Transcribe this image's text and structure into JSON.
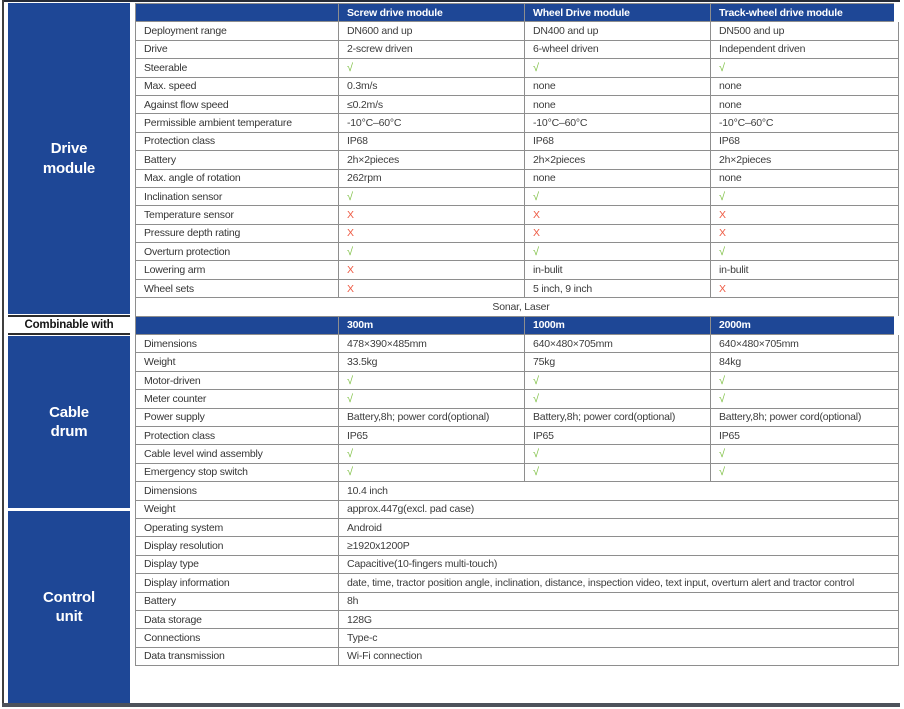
{
  "colors": {
    "header_blue": "#1e4796",
    "check_green": "#7ec043",
    "cross_red": "#ee5a43"
  },
  "drive_module": {
    "title_lines": {
      "0": "Drive",
      "1": "module"
    },
    "header": {
      "0": "Screw drive module",
      "1": "Wheel Drive module",
      "2": "Track-wheel drive module"
    },
    "rows": [
      [
        "Deployment range",
        "DN600 and up",
        "DN400 and up",
        "DN500 and up"
      ],
      [
        "Drive",
        "2-screw driven",
        "6-wheel driven",
        "Independent driven"
      ],
      [
        "Steerable",
        "√",
        "√",
        "√"
      ],
      [
        "Max. speed",
        "0.3m/s",
        "none",
        "none"
      ],
      [
        "Against flow speed",
        "≤0.2m/s",
        "none",
        "none"
      ],
      [
        "Permissible ambient temperature",
        "-10°C–60°C",
        "-10°C–60°C",
        "-10°C–60°C"
      ],
      [
        "Protection class",
        "IP68",
        "IP68",
        "IP68"
      ],
      [
        "Battery",
        "2h×2pieces",
        "2h×2pieces",
        "2h×2pieces"
      ],
      [
        "Max. angle of rotation",
        "262rpm",
        "none",
        "none"
      ],
      [
        "Inclination sensor",
        "√",
        "√",
        "√"
      ],
      [
        "Temperature sensor",
        "X",
        "X",
        "X"
      ],
      [
        "Pressure depth rating",
        "X",
        "X",
        "X"
      ],
      [
        "Overturn protection",
        "√",
        "√",
        "√"
      ],
      [
        "Lowering arm",
        "X",
        "in-bulit",
        "in-bulit"
      ],
      [
        "Wheel sets",
        "X",
        "5 inch, 9 inch",
        "X"
      ]
    ]
  },
  "combinable": {
    "label": "Combinable with",
    "value": "Sonar, Laser"
  },
  "cable_drum": {
    "title_lines": {
      "0": "Cable",
      "1": "drum"
    },
    "header": {
      "0": "300m",
      "1": "1000m",
      "2": "2000m"
    },
    "rows": [
      [
        "Dimensions",
        "478×390×485mm",
        "640×480×705mm",
        "640×480×705mm"
      ],
      [
        "Weight",
        "33.5kg",
        "75kg",
        "84kg"
      ],
      [
        "Motor-driven",
        "√",
        "√",
        "√"
      ],
      [
        "Meter counter",
        "√",
        "√",
        "√"
      ],
      [
        "Power supply",
        "Battery,8h; power cord(optional)",
        "Battery,8h; power cord(optional)",
        "Battery,8h; power cord(optional)"
      ],
      [
        "Protection class",
        "IP65",
        "IP65",
        "IP65"
      ],
      [
        "Cable level wind assembly",
        "√",
        "√",
        "√"
      ],
      [
        "Emergency stop switch",
        "√",
        "√",
        "√"
      ]
    ]
  },
  "control_unit": {
    "title_lines": {
      "0": "Control",
      "1": "unit"
    },
    "rows": [
      [
        "Dimensions",
        "10.4 inch"
      ],
      [
        "Weight",
        "approx.447g(excl. pad case)"
      ],
      [
        "Operating system",
        "Android"
      ],
      [
        "Display resolution",
        "≥1920x1200P"
      ],
      [
        "Display type",
        "Capacitive(10-fingers multi-touch)"
      ],
      [
        "Display information",
        "date, time, tractor position angle, inclination, distance, inspection video, text input, overturn alert and tractor control"
      ],
      [
        "Battery",
        "8h"
      ],
      [
        "Data storage",
        "128G"
      ],
      [
        "Connections",
        "Type-c"
      ],
      [
        "Data transmission",
        "Wi-Fi connection"
      ]
    ]
  }
}
